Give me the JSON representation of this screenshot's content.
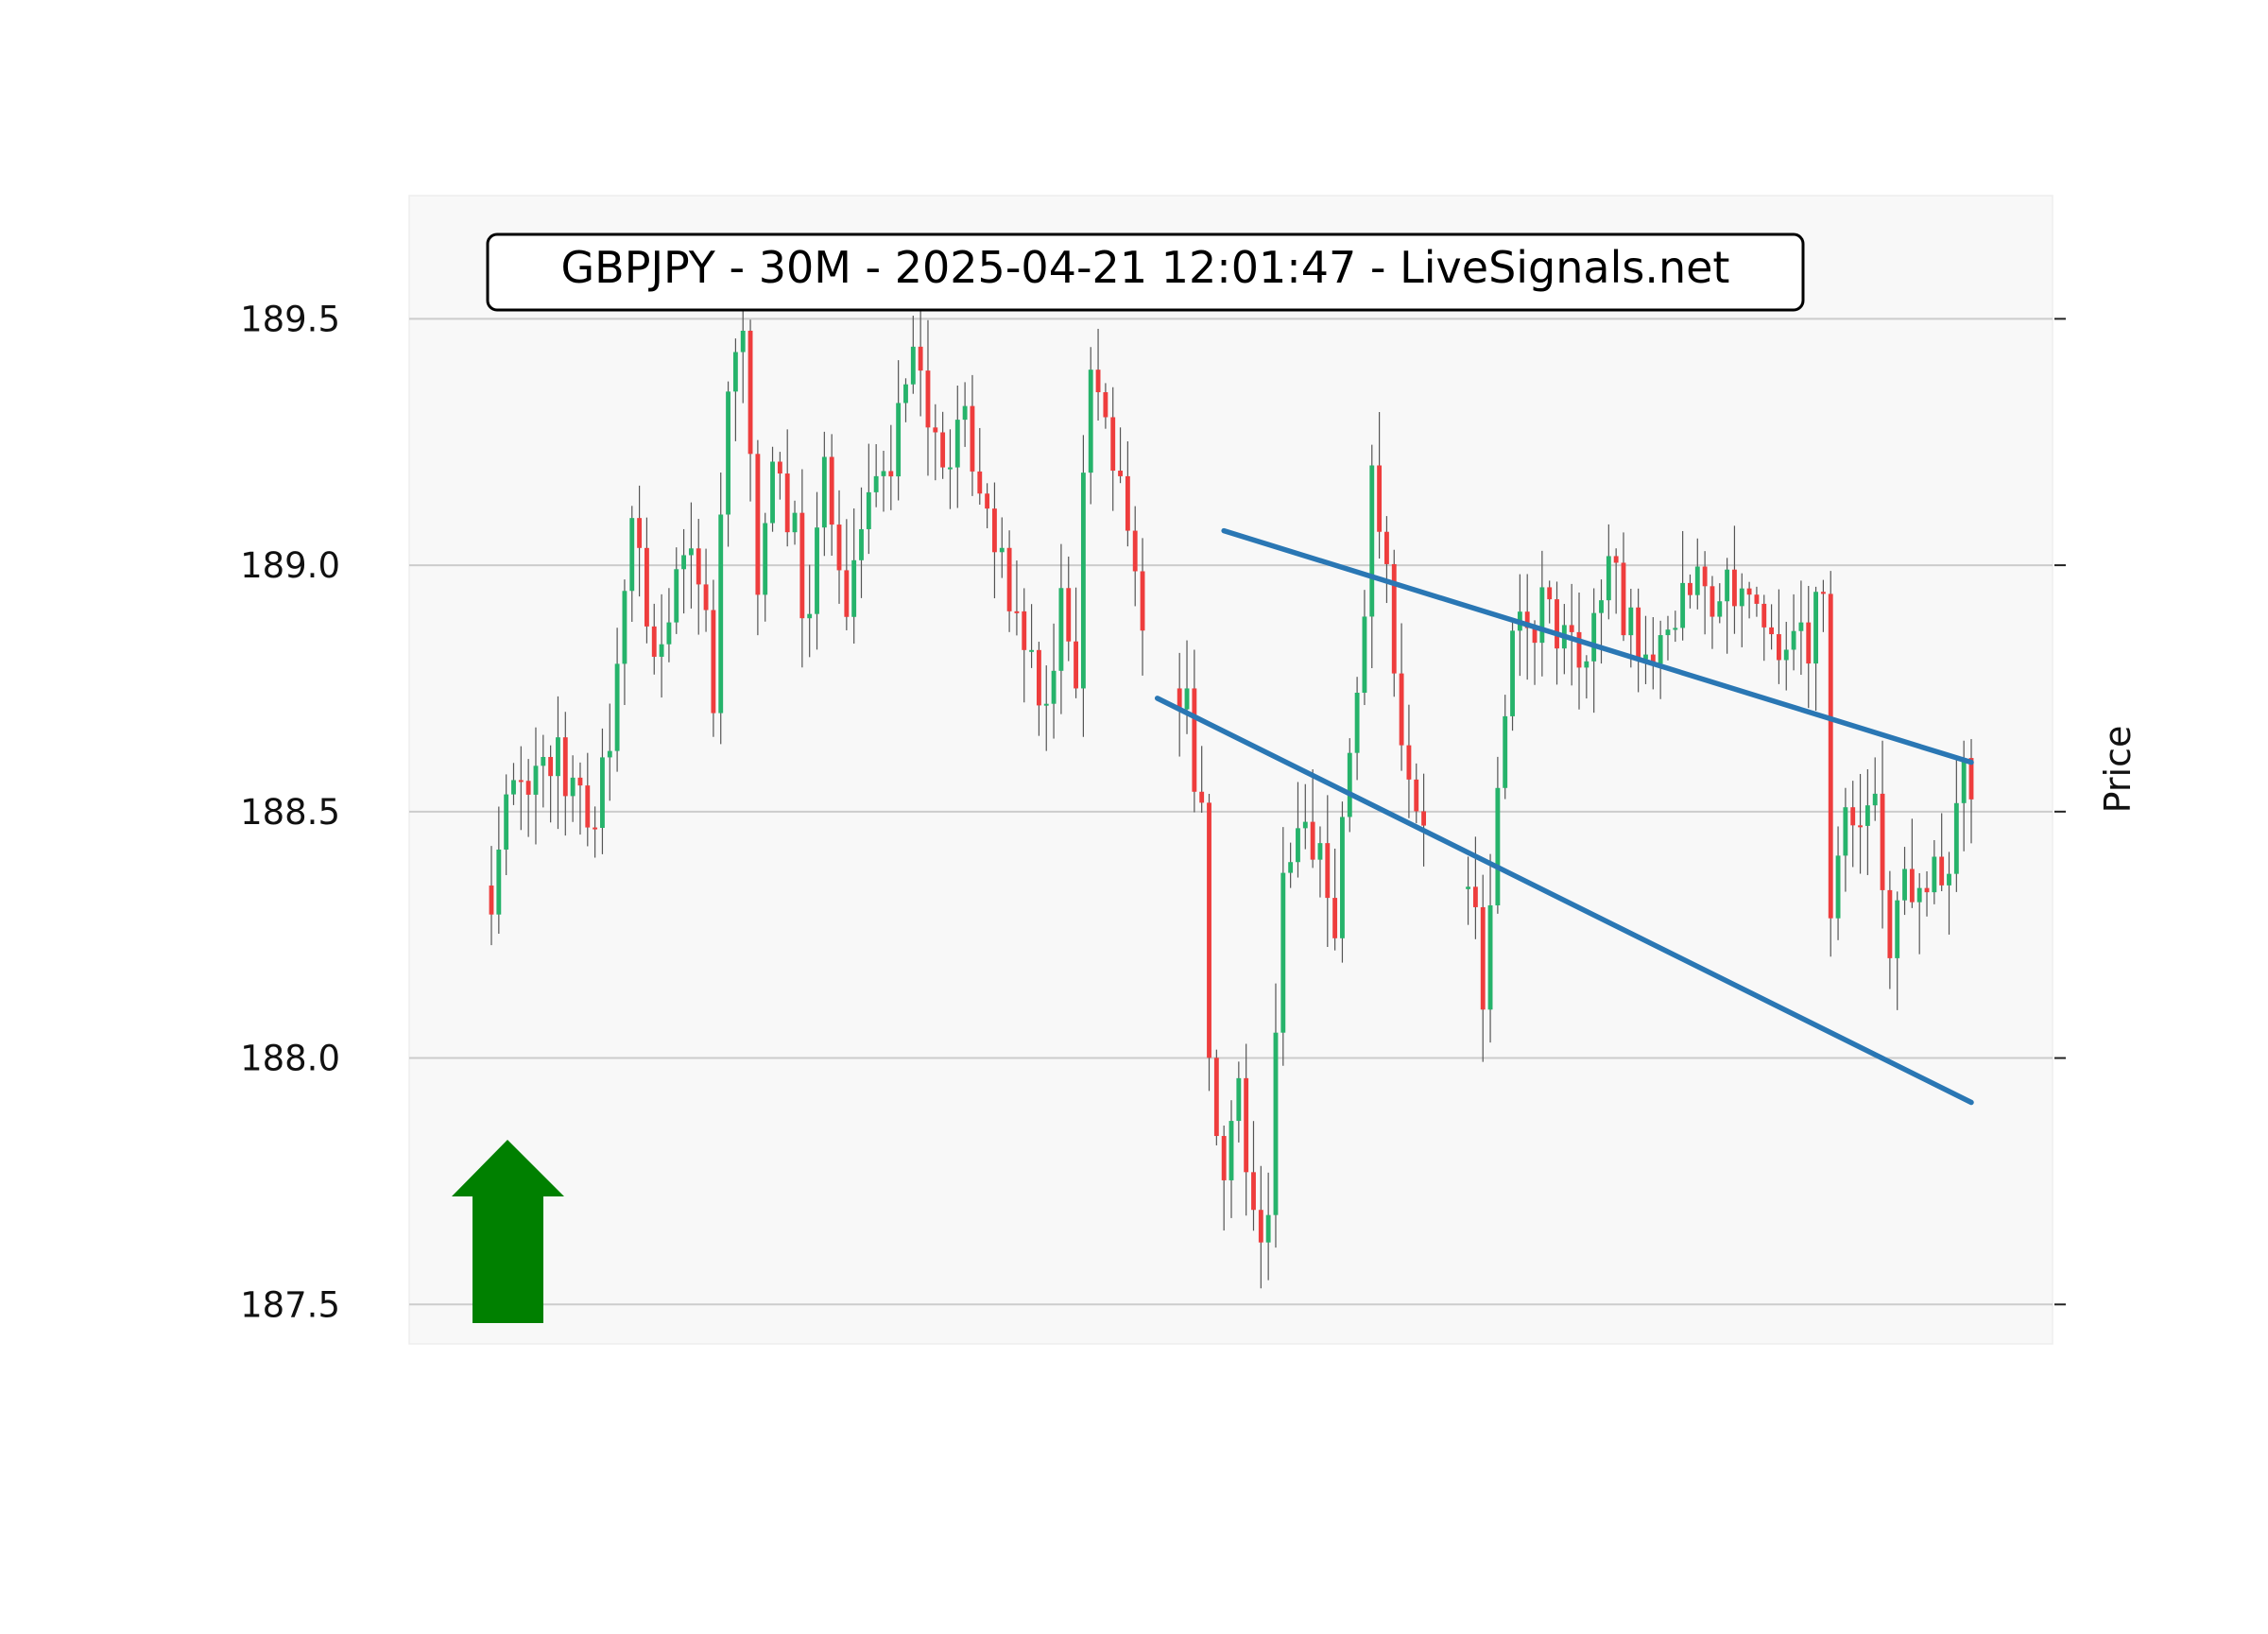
{
  "chart_data": {
    "type": "candlestick",
    "title": "GBPJPY - 30M - 2025-04-21 12:01:47 - LiveSignals.net",
    "ylabel": "Price",
    "xlabel": "",
    "ylim": [
      187.42,
      189.75
    ],
    "y_ticks": [
      187.5,
      188.0,
      188.5,
      189.0,
      189.5
    ],
    "y_tick_labels": [
      "187.5",
      "188.0",
      "188.5",
      "189.0",
      "189.5"
    ],
    "axis_side": "right",
    "grid": true,
    "colors": {
      "up": "#26b36b",
      "down": "#ee3d3d",
      "wick": "#555555",
      "trendline": "#2a77b4",
      "arrow": "#008000",
      "plot_bg": "#f8f8f8",
      "grid": "#cccccc"
    },
    "signal": {
      "direction": "up",
      "icon": "up-arrow-icon"
    },
    "gaps": [
      [
        89,
        92
      ],
      [
        127,
        131
      ]
    ],
    "anchors": [
      [
        0,
        188.35
      ],
      [
        3,
        188.55
      ],
      [
        7,
        188.62
      ],
      [
        11,
        188.58
      ],
      [
        13,
        188.45
      ],
      [
        16,
        188.63
      ],
      [
        19,
        189.05
      ],
      [
        22,
        188.85
      ],
      [
        25,
        188.95
      ],
      [
        28,
        189.0
      ],
      [
        30,
        188.75
      ],
      [
        32,
        189.35
      ],
      [
        34,
        189.5
      ],
      [
        36,
        189.0
      ],
      [
        38,
        189.25
      ],
      [
        41,
        189.05
      ],
      [
        43,
        188.85
      ],
      [
        45,
        189.2
      ],
      [
        48,
        188.95
      ],
      [
        51,
        189.15
      ],
      [
        54,
        189.2
      ],
      [
        57,
        189.45
      ],
      [
        59,
        189.3
      ],
      [
        61,
        189.2
      ],
      [
        64,
        189.3
      ],
      [
        67,
        189.15
      ],
      [
        70,
        188.95
      ],
      [
        73,
        188.85
      ],
      [
        75,
        188.7
      ],
      [
        77,
        188.9
      ],
      [
        79,
        188.7
      ],
      [
        80,
        189.2
      ],
      [
        81,
        189.45
      ],
      [
        83,
        189.3
      ],
      [
        86,
        189.1
      ],
      [
        88,
        188.85
      ],
      [
        94,
        188.7
      ],
      [
        96,
        188.5
      ],
      [
        97,
        188.05
      ],
      [
        99,
        187.7
      ],
      [
        101,
        187.95
      ],
      [
        103,
        187.65
      ],
      [
        105,
        187.7
      ],
      [
        106,
        188.0
      ],
      [
        107,
        188.4
      ],
      [
        109,
        188.5
      ],
      [
        112,
        188.4
      ],
      [
        114,
        188.3
      ],
      [
        116,
        188.6
      ],
      [
        118,
        188.85
      ],
      [
        119,
        189.15
      ],
      [
        121,
        188.95
      ],
      [
        123,
        188.6
      ],
      [
        125,
        188.45
      ],
      [
        126,
        188.45
      ],
      [
        133,
        188.3
      ],
      [
        134,
        188.15
      ],
      [
        136,
        188.55
      ],
      [
        138,
        188.9
      ],
      [
        140,
        188.85
      ],
      [
        142,
        188.9
      ],
      [
        144,
        188.85
      ],
      [
        146,
        188.85
      ],
      [
        148,
        188.85
      ],
      [
        150,
        188.9
      ],
      [
        151,
        189.0
      ],
      [
        153,
        188.9
      ],
      [
        155,
        188.85
      ],
      [
        158,
        188.85
      ],
      [
        160,
        188.9
      ],
      [
        163,
        188.95
      ],
      [
        166,
        188.95
      ],
      [
        169,
        188.9
      ],
      [
        172,
        188.9
      ],
      [
        174,
        188.75
      ],
      [
        176,
        188.85
      ],
      [
        178,
        188.85
      ],
      [
        180,
        189.0
      ],
      [
        181,
        188.3
      ],
      [
        183,
        188.55
      ],
      [
        185,
        188.45
      ],
      [
        187,
        188.5
      ],
      [
        188,
        188.3
      ],
      [
        189,
        188.2
      ],
      [
        191,
        188.35
      ],
      [
        193,
        188.4
      ],
      [
        195,
        188.35
      ],
      [
        197,
        188.4
      ],
      [
        199,
        188.55
      ],
      [
        200,
        188.5
      ]
    ],
    "trendlines": [
      {
        "points": [
          [
            99,
            189.07
          ],
          [
            200,
            188.6
          ]
        ]
      },
      {
        "points": [
          [
            90,
            188.73
          ],
          [
            200,
            187.91
          ]
        ]
      }
    ]
  }
}
